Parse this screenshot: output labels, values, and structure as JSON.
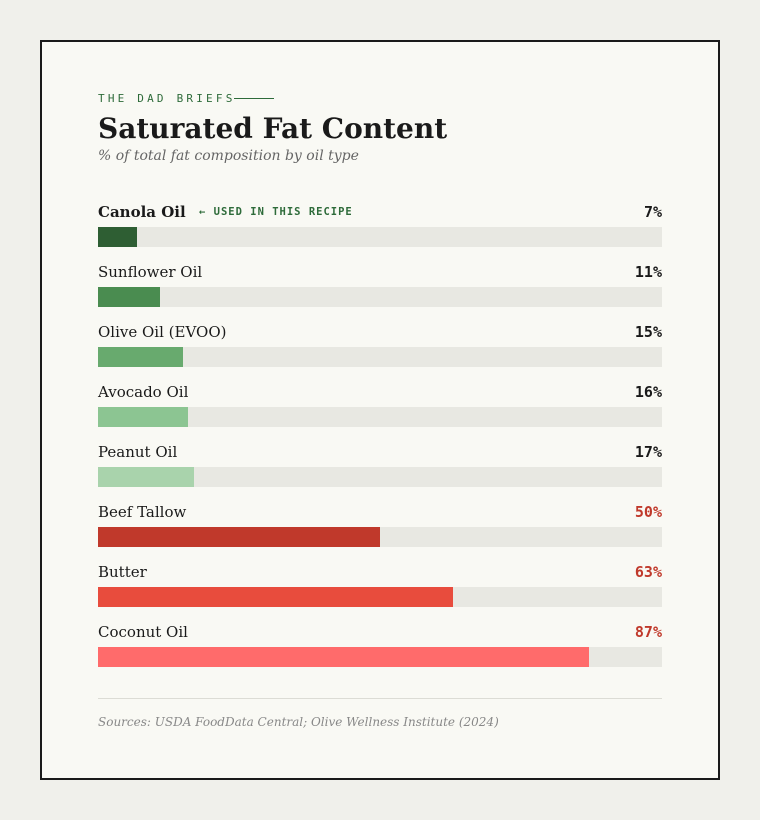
{
  "header": {
    "kicker": "THE DAD BRIEFS",
    "title": "Saturated Fat Content",
    "subtitle": "% of total fat composition by oil type"
  },
  "colors": {
    "accent_green": "#2e6b3a",
    "alert_red": "#c0392b",
    "track": "#e8e8e2"
  },
  "chart_data": {
    "type": "bar",
    "orientation": "horizontal",
    "title": "Saturated Fat Content",
    "subtitle": "% of total fat composition by oil type",
    "xlim": [
      0,
      100
    ],
    "unit": "%",
    "categories": [
      "Canola Oil",
      "Sunflower Oil",
      "Olive Oil (EVOO)",
      "Avocado Oil",
      "Peanut Oil",
      "Beef Tallow",
      "Butter",
      "Coconut Oil"
    ],
    "values": [
      7,
      11,
      15,
      16,
      17,
      50,
      63,
      87
    ],
    "value_labels": [
      "7%",
      "11%",
      "15%",
      "16%",
      "17%",
      "50%",
      "63%",
      "87%"
    ],
    "bar_colors": [
      "#2e5e33",
      "#4a8c50",
      "#68aa6e",
      "#8cc592",
      "#a9d3ac",
      "#c0392b",
      "#e84c3d",
      "#ff6b6b"
    ],
    "value_colors": [
      "#1a1a1a",
      "#1a1a1a",
      "#1a1a1a",
      "#1a1a1a",
      "#1a1a1a",
      "#c0392b",
      "#c0392b",
      "#c0392b"
    ],
    "highlight_index": 0,
    "annotation": "← USED IN THIS RECIPE"
  },
  "footer": {
    "source": "Sources: USDA FoodData Central; Olive Wellness Institute (2024)"
  }
}
